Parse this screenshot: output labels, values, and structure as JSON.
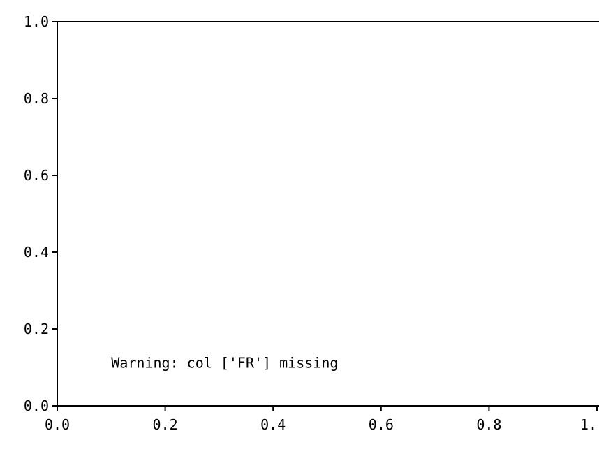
{
  "chart_data": {
    "type": "scatter",
    "title": "",
    "xlabel": "",
    "ylabel": "",
    "xlim": [
      0.0,
      1.0
    ],
    "ylim": [
      0.0,
      1.0
    ],
    "x_ticks": [
      0.0,
      0.2,
      0.4,
      0.6,
      0.8,
      1.0
    ],
    "x_tick_labels": [
      "0.0",
      "0.2",
      "0.4",
      "0.6",
      "0.8",
      "1."
    ],
    "y_ticks": [
      0.0,
      0.2,
      0.4,
      0.6,
      0.8,
      1.0
    ],
    "y_tick_labels": [
      "0.0",
      "0.2",
      "0.4",
      "0.6",
      "0.8",
      "1.0"
    ],
    "grid": false,
    "series": [],
    "annotations": [
      {
        "text": "Warning: col ['FR'] missing",
        "x": 0.1,
        "y": 0.11
      }
    ]
  }
}
